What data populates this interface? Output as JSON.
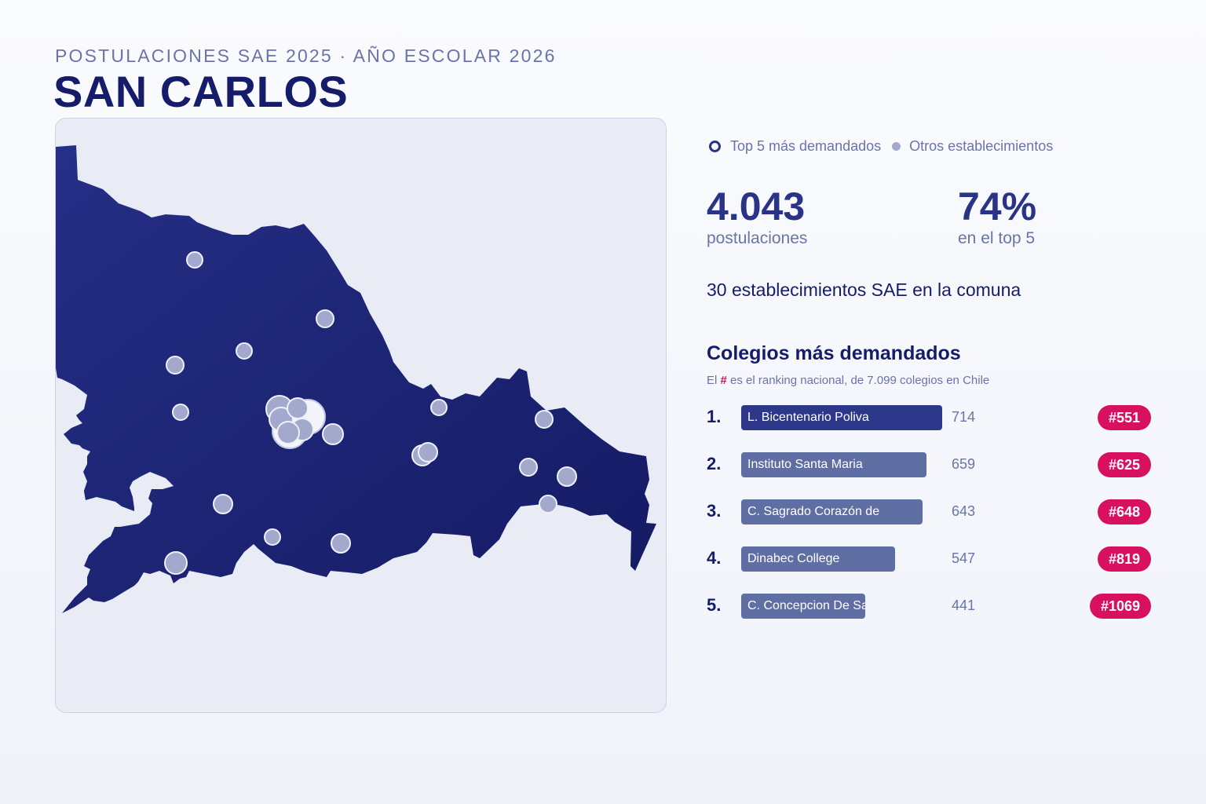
{
  "header": {
    "subtitle": "POSTULACIONES SAE 2025 · AÑO ESCOLAR 2026",
    "title": "SAN CARLOS"
  },
  "legend": {
    "top_label": "Top 5 más demandados",
    "other_label": "Otros establecimientos"
  },
  "stats": {
    "applications_value": "4.043",
    "applications_label": "postulaciones",
    "top5_share_value": "74%",
    "top5_share_label": "en el top 5"
  },
  "establishments_line": "30 establecimientos SAE en la comuna",
  "ranking": {
    "title": "Colegios más demandados",
    "note_prefix": "El",
    "note_hash": "#",
    "note_suffix": "es el ranking nacional, de 7.099 colegios en Chile",
    "items": [
      {
        "position": "1.",
        "name": "L. Bicentenario Poliva",
        "applications": 714,
        "national_rank": "#551"
      },
      {
        "position": "2.",
        "name": "Instituto Santa Maria",
        "applications": 659,
        "national_rank": "#625"
      },
      {
        "position": "3.",
        "name": "C. Sagrado Corazón de",
        "applications": 643,
        "national_rank": "#648"
      },
      {
        "position": "4.",
        "name": "Dinabec College",
        "applications": 547,
        "national_rank": "#819"
      },
      {
        "position": "5.",
        "name": "C. Concepcion De San C",
        "applications": 441,
        "national_rank": "#1069"
      }
    ]
  },
  "colors": {
    "title": "#151d6b",
    "accent": "#2a3486",
    "muted": "#6a74a8",
    "bar_top": "#2e388a",
    "bar_other": "#5f6fa3",
    "badge": "#d7115f",
    "region_fill_light": "#262f86",
    "region_fill_dark": "#141a63",
    "marker_fill": "#a3a9cc"
  }
}
